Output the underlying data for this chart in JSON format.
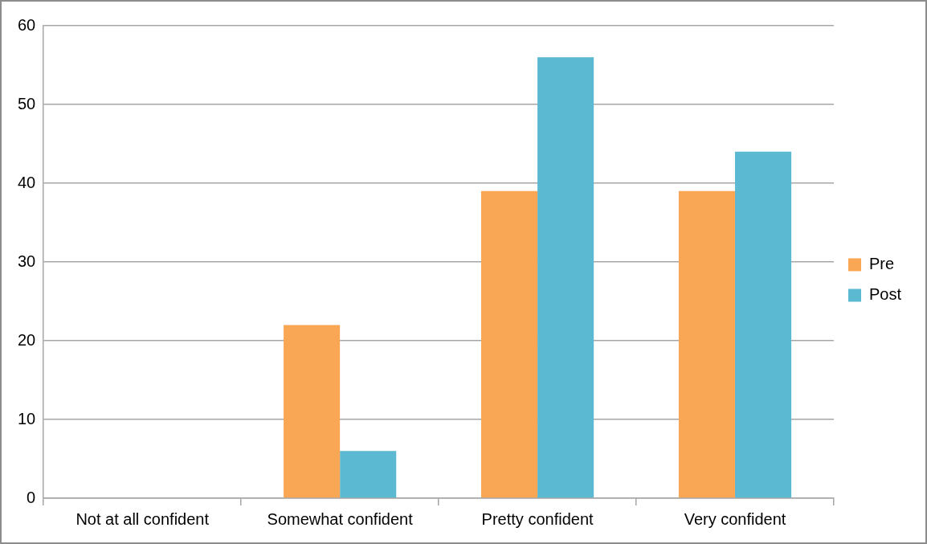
{
  "chart_data": {
    "type": "bar",
    "categories": [
      "Not at all confident",
      "Somewhat confident",
      "Pretty confident",
      "Very confident"
    ],
    "series": [
      {
        "name": "Pre",
        "color": "#f9a655",
        "values": [
          0,
          22,
          39,
          39
        ]
      },
      {
        "name": "Post",
        "color": "#5bb9d2",
        "values": [
          0,
          6,
          56,
          44
        ]
      }
    ],
    "ylim": [
      0,
      60
    ],
    "yticks": [
      0,
      10,
      20,
      30,
      40,
      50,
      60
    ],
    "grid": "y",
    "legend": "right"
  }
}
